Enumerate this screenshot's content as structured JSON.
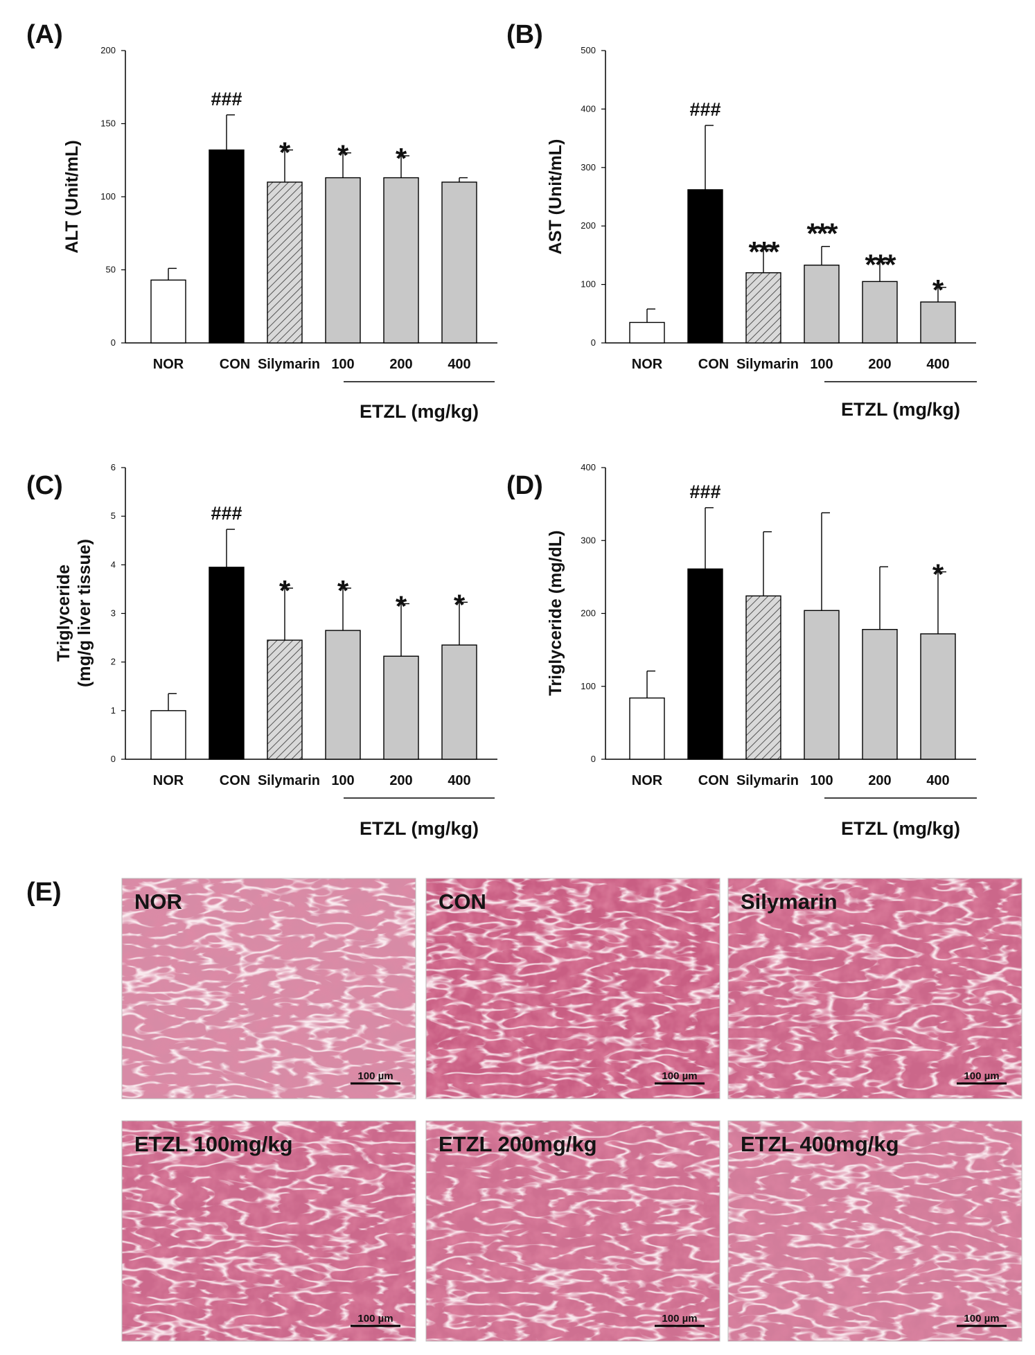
{
  "chart_data": [
    {
      "type": "bar",
      "panel": "(A)",
      "categories": [
        "NOR",
        "CON",
        "Silymarin",
        "100",
        "200",
        "400"
      ],
      "values": [
        43,
        132,
        110,
        113,
        113,
        110
      ],
      "errors": [
        8,
        24,
        22,
        17,
        15,
        3
      ],
      "significance": [
        "",
        "###",
        "*",
        "*",
        "*",
        ""
      ],
      "fills": [
        "white",
        "black",
        "hatched",
        "gray",
        "gray",
        "gray"
      ],
      "ylabel": "ALT (Unit/mL)",
      "group_label": "ETZL (mg/kg)",
      "ylim": [
        0,
        200
      ],
      "yticks": [
        0,
        50,
        100,
        150,
        200
      ]
    },
    {
      "type": "bar",
      "panel": "(B)",
      "categories": [
        "NOR",
        "CON",
        "Silymarin",
        "100",
        "200",
        "400"
      ],
      "values": [
        35,
        262,
        120,
        133,
        105,
        70
      ],
      "errors": [
        23,
        110,
        40,
        32,
        33,
        25
      ],
      "significance": [
        "",
        "###",
        "***",
        "***",
        "***",
        "*"
      ],
      "fills": [
        "white",
        "black",
        "hatched",
        "gray",
        "gray",
        "gray"
      ],
      "ylabel": "AST (Unit/mL)",
      "group_label": "ETZL (mg/kg)",
      "ylim": [
        0,
        500
      ],
      "yticks": [
        0,
        100,
        200,
        300,
        400,
        500
      ]
    },
    {
      "type": "bar",
      "panel": "(C)",
      "categories": [
        "NOR",
        "CON",
        "Silymarin",
        "100",
        "200",
        "400"
      ],
      "values": [
        1.0,
        3.95,
        2.45,
        2.65,
        2.12,
        2.35
      ],
      "errors": [
        0.35,
        0.78,
        1.07,
        0.87,
        1.08,
        0.88
      ],
      "significance": [
        "",
        "###",
        "*",
        "*",
        "*",
        "*"
      ],
      "fills": [
        "white",
        "black",
        "hatched",
        "gray",
        "gray",
        "gray"
      ],
      "ylabel": [
        "Triglyceride",
        "(mg/g liver tissue)"
      ],
      "group_label": "ETZL (mg/kg)",
      "ylim": [
        0,
        6
      ],
      "yticks": [
        0,
        1,
        2,
        3,
        4,
        5,
        6
      ]
    },
    {
      "type": "bar",
      "panel": "(D)",
      "categories": [
        "NOR",
        "CON",
        "Silymarin",
        "100",
        "200",
        "400"
      ],
      "values": [
        84,
        261,
        224,
        204,
        178,
        172
      ],
      "errors": [
        37,
        84,
        88,
        134,
        86,
        85
      ],
      "significance": [
        "",
        "###",
        "",
        "",
        "",
        "*"
      ],
      "fills": [
        "white",
        "black",
        "hatched",
        "gray",
        "gray",
        "gray"
      ],
      "ylabel": "Triglyceride (mg/dL)",
      "group_label": "ETZL (mg/kg)",
      "ylim": [
        0,
        400
      ],
      "yticks": [
        0,
        100,
        200,
        300,
        400
      ]
    }
  ],
  "micrographs": {
    "panel": "(E)",
    "images": [
      {
        "label": "NOR",
        "scale_bar": "100 µm",
        "stain_intensity": 0.35
      },
      {
        "label": "CON",
        "scale_bar": "100 µm",
        "stain_intensity": 0.85
      },
      {
        "label": "Silymarin",
        "scale_bar": "100 µm",
        "stain_intensity": 0.75
      },
      {
        "label": "ETZL 100mg/kg",
        "scale_bar": "100 µm",
        "stain_intensity": 0.72
      },
      {
        "label": "ETZL 200mg/kg",
        "scale_bar": "100 µm",
        "stain_intensity": 0.65
      },
      {
        "label": "ETZL 400mg/kg",
        "scale_bar": "100 µm",
        "stain_intensity": 0.5
      }
    ]
  }
}
